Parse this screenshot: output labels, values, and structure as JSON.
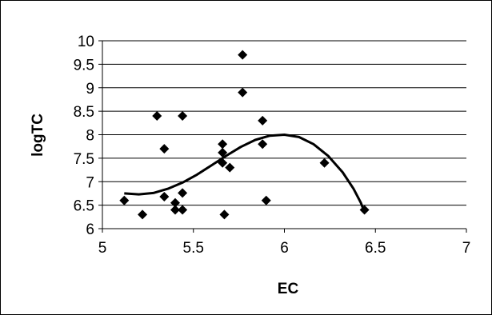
{
  "chart_data": {
    "type": "scatter",
    "title": "",
    "xlabel": "EC",
    "ylabel": "logTC",
    "xlim": [
      5,
      7
    ],
    "ylim": [
      6,
      10
    ],
    "x_ticks": [
      "5",
      "5.5",
      "6",
      "6.5",
      "7"
    ],
    "y_ticks": [
      "6",
      "6.5",
      "7",
      "7.5",
      "8",
      "8.5",
      "9",
      "9.5",
      "10"
    ],
    "grid": "horizontal",
    "legend": "none",
    "colors": {
      "points": "#000000",
      "trendline": "#000000",
      "gridlines": "#000000"
    },
    "series": [
      {
        "marker": "diamond",
        "points": [
          {
            "x": 5.12,
            "y": 6.6
          },
          {
            "x": 5.22,
            "y": 6.3
          },
          {
            "x": 5.3,
            "y": 8.4
          },
          {
            "x": 5.34,
            "y": 7.7
          },
          {
            "x": 5.34,
            "y": 6.68
          },
          {
            "x": 5.4,
            "y": 6.55
          },
          {
            "x": 5.4,
            "y": 6.4
          },
          {
            "x": 5.44,
            "y": 8.4
          },
          {
            "x": 5.44,
            "y": 6.76
          },
          {
            "x": 5.44,
            "y": 6.4
          },
          {
            "x": 5.66,
            "y": 7.8
          },
          {
            "x": 5.66,
            "y": 7.62
          },
          {
            "x": 5.66,
            "y": 7.4
          },
          {
            "x": 5.67,
            "y": 6.3
          },
          {
            "x": 5.7,
            "y": 7.3
          },
          {
            "x": 5.77,
            "y": 9.7
          },
          {
            "x": 5.77,
            "y": 8.9
          },
          {
            "x": 5.88,
            "y": 8.3
          },
          {
            "x": 5.88,
            "y": 7.8
          },
          {
            "x": 5.9,
            "y": 6.6
          },
          {
            "x": 6.22,
            "y": 7.4
          },
          {
            "x": 6.44,
            "y": 6.4
          }
        ]
      }
    ],
    "trendline": {
      "type": "curve",
      "points": [
        {
          "x": 5.12,
          "y": 6.75
        },
        {
          "x": 5.2,
          "y": 6.73
        },
        {
          "x": 5.28,
          "y": 6.76
        },
        {
          "x": 5.36,
          "y": 6.85
        },
        {
          "x": 5.44,
          "y": 6.98
        },
        {
          "x": 5.52,
          "y": 7.15
        },
        {
          "x": 5.6,
          "y": 7.35
        },
        {
          "x": 5.68,
          "y": 7.55
        },
        {
          "x": 5.76,
          "y": 7.74
        },
        {
          "x": 5.84,
          "y": 7.89
        },
        {
          "x": 5.92,
          "y": 7.98
        },
        {
          "x": 6.0,
          "y": 8.0
        },
        {
          "x": 6.08,
          "y": 7.95
        },
        {
          "x": 6.16,
          "y": 7.8
        },
        {
          "x": 6.24,
          "y": 7.55
        },
        {
          "x": 6.32,
          "y": 7.2
        },
        {
          "x": 6.38,
          "y": 6.85
        },
        {
          "x": 6.42,
          "y": 6.55
        },
        {
          "x": 6.44,
          "y": 6.35
        }
      ]
    }
  }
}
